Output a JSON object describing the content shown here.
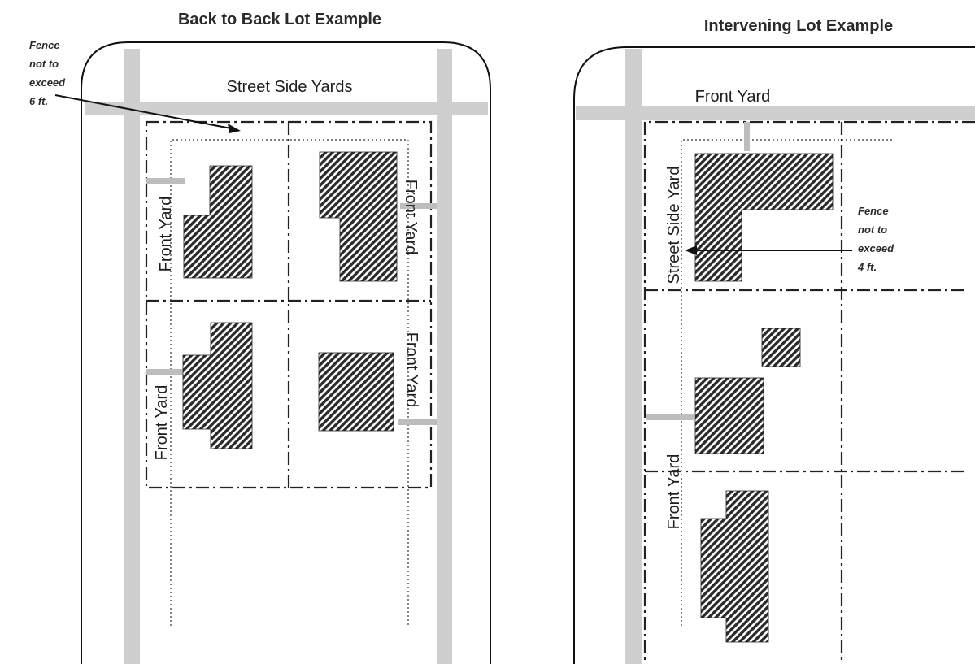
{
  "left_panel": {
    "title": "Back to Back Lot Example",
    "street_label": "Street Side Yards",
    "fence_note": [
      "Fence",
      "not to",
      "exceed",
      "6 ft."
    ],
    "yard_labels": [
      "Front Yard",
      "Front Yard",
      "Front Yard",
      "Front Yard"
    ]
  },
  "right_panel": {
    "title": "Intervening Lot Example",
    "street_label": "Front Yard",
    "fence_note": [
      "Fence",
      "not to",
      "exceed",
      "4 ft."
    ],
    "yard_labels": [
      "Street Side Yard",
      "Front Yard"
    ]
  }
}
